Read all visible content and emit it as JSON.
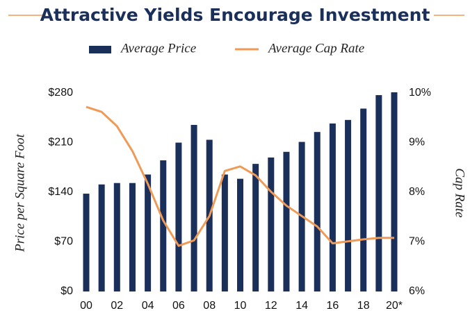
{
  "chart_data": {
    "type": "bar-line",
    "title": "Attractive Yields Encourage Investment",
    "y_label": "Price per Square Foot",
    "y2_label": "Cap Rate",
    "legend": "top",
    "categories": [
      "00",
      null,
      "02",
      null,
      "04",
      null,
      "06",
      null,
      "08",
      null,
      "10",
      null,
      "12",
      null,
      "14",
      null,
      "16",
      null,
      "18",
      null,
      "20*"
    ],
    "series": [
      {
        "name": "Average Price",
        "type": "bar",
        "color": "#1b2f5b",
        "values": [
          138,
          151,
          153,
          153,
          165,
          185,
          210,
          235,
          214,
          165,
          159,
          180,
          189,
          197,
          211,
          225,
          237,
          242,
          258,
          277,
          281
        ]
      },
      {
        "name": "Average Cap Rate",
        "type": "line",
        "color": "#ef9a56",
        "axis": "y2",
        "values": [
          9.72,
          9.62,
          9.33,
          8.83,
          8.17,
          7.43,
          6.92,
          7.03,
          7.52,
          8.43,
          8.52,
          8.34,
          8.01,
          7.73,
          7.52,
          7.31,
          6.97,
          7.01,
          7.05,
          7.08,
          7.08
        ]
      }
    ],
    "ylim": [
      0,
      280
    ],
    "yticks": [
      {
        "value": 0,
        "label": "$0"
      },
      {
        "value": 70,
        "label": "$70"
      },
      {
        "value": 140,
        "label": "$140"
      },
      {
        "value": 210,
        "label": "$210"
      },
      {
        "value": 280,
        "label": "$280"
      }
    ],
    "y2lim": [
      6,
      10
    ],
    "y2ticks": [
      {
        "value": 6,
        "label": "6%"
      },
      {
        "value": 7,
        "label": "7%"
      },
      {
        "value": 8,
        "label": "8%"
      },
      {
        "value": 9,
        "label": "9%"
      },
      {
        "value": 10,
        "label": "10%"
      }
    ]
  }
}
